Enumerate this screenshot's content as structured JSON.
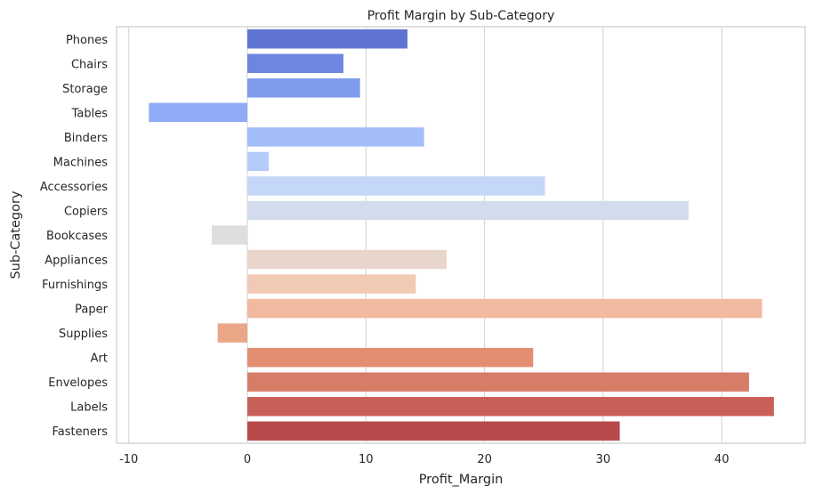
{
  "chart_data": {
    "type": "bar",
    "orientation": "horizontal",
    "title": "Profit Margin by Sub-Category",
    "xlabel": "Profit_Margin",
    "ylabel": "Sub-Category",
    "xlim": [
      -11,
      46
    ],
    "xticks": [
      -10,
      0,
      10,
      20,
      30,
      40
    ],
    "grid": "vertical",
    "categories": [
      "Phones",
      "Chairs",
      "Storage",
      "Tables",
      "Binders",
      "Machines",
      "Accessories",
      "Copiers",
      "Bookcases",
      "Appliances",
      "Furnishings",
      "Paper",
      "Supplies",
      "Art",
      "Envelopes",
      "Labels",
      "Fasteners"
    ],
    "values": [
      13.5,
      8.1,
      9.5,
      -8.3,
      14.9,
      1.8,
      25.1,
      37.2,
      -3.0,
      16.8,
      14.2,
      43.4,
      -2.5,
      24.1,
      42.3,
      44.4,
      31.4
    ],
    "colors": [
      "#5f73d2",
      "#6d87e0",
      "#7f9bec",
      "#8fabf5",
      "#a3bdf9",
      "#b5cbfa",
      "#c5d7f6",
      "#d3dcec",
      "#dedede",
      "#e8d6cc",
      "#f2c9b4",
      "#f0b9a0",
      "#e9a787",
      "#e38e73",
      "#d67d68",
      "#c96058",
      "#b9484a"
    ]
  }
}
